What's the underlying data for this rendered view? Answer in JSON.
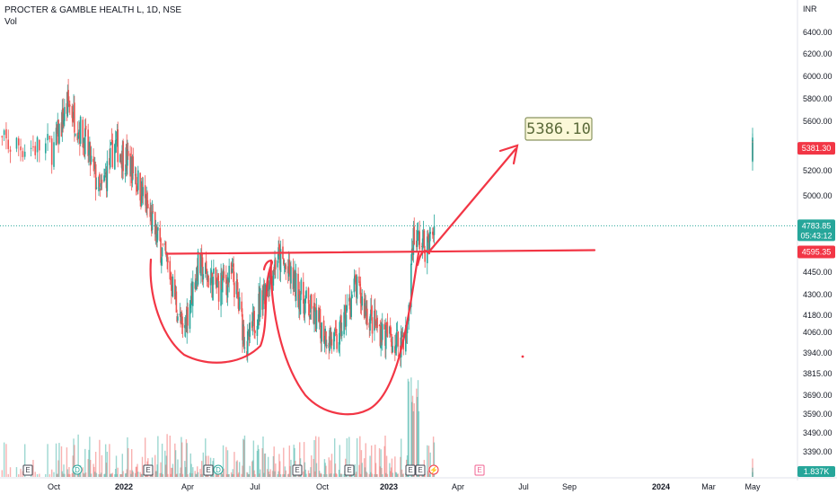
{
  "header": {
    "symbol_line": "PROCTER & GAMBLE HEALTH L, 1D, NSE",
    "vol_label": "Vol"
  },
  "colors": {
    "up": "#26a69a",
    "down": "#ef5350",
    "drawing": "#f23645",
    "price_line": "#26a69a",
    "target_fill": "#fbf8d8",
    "target_border": "#8a9561"
  },
  "chart_data": {
    "type": "candlestick",
    "title": "PROCTER & GAMBLE HEALTH L, 1D, NSE",
    "currency": "INR",
    "ylim": [
      3330,
      6520
    ],
    "y_ticks": [
      6400,
      6200,
      6000,
      5800,
      5600,
      5200,
      5000,
      4450,
      4300,
      4180,
      4060,
      3940,
      3815,
      3690,
      3590,
      3490,
      3390
    ],
    "y_tick_labels": [
      "6400.00",
      "6200.00",
      "6000.00",
      "5800.00",
      "5600.00",
      "5200.00",
      "5000.00",
      "4450.00",
      "4300.00",
      "4180.00",
      "4060.00",
      "3940.00",
      "3815.00",
      "3690.00",
      "3590.00",
      "3490.00",
      "3390.00"
    ],
    "x_labels": [
      "Oct",
      "2022",
      "Apr",
      "Jul",
      "Oct",
      "2023",
      "Apr",
      "Jul",
      "Sep",
      "2024",
      "Mar",
      "May"
    ],
    "price_path": [
      {
        "date": "2021-09-01",
        "close": 5420
      },
      {
        "date": "2021-10-01",
        "close": 5380
      },
      {
        "date": "2021-10-20",
        "close": 5760
      },
      {
        "date": "2021-11-10",
        "close": 5450
      },
      {
        "date": "2021-12-01",
        "close": 5000
      },
      {
        "date": "2021-12-20",
        "close": 5420
      },
      {
        "date": "2022-01-15",
        "close": 5200
      },
      {
        "date": "2022-02-15",
        "close": 4720
      },
      {
        "date": "2022-03-05",
        "close": 4480
      },
      {
        "date": "2022-03-25",
        "close": 4050
      },
      {
        "date": "2022-04-15",
        "close": 4500
      },
      {
        "date": "2022-05-10",
        "close": 4350
      },
      {
        "date": "2022-06-01",
        "close": 4420
      },
      {
        "date": "2022-06-20",
        "close": 3970
      },
      {
        "date": "2022-07-10",
        "close": 4300
      },
      {
        "date": "2022-08-01",
        "close": 4560
      },
      {
        "date": "2022-09-01",
        "close": 4300
      },
      {
        "date": "2022-10-01",
        "close": 4080
      },
      {
        "date": "2022-10-20",
        "close": 3990
      },
      {
        "date": "2022-11-15",
        "close": 4350
      },
      {
        "date": "2022-12-10",
        "close": 4120
      },
      {
        "date": "2023-01-10",
        "close": 4000
      },
      {
        "date": "2023-01-25",
        "close": 4070
      },
      {
        "date": "2023-02-01",
        "close": 4700
      },
      {
        "date": "2023-02-10",
        "close": 4680
      },
      {
        "date": "2023-02-20",
        "close": 4620
      },
      {
        "date": "2023-03-01",
        "close": 4783.85
      }
    ],
    "volume_max_label": "1.837K",
    "last_price": {
      "value": "4783.85",
      "countdown": "05:43:12"
    },
    "levels": [
      {
        "label": "5381.30",
        "value": 5381.3
      },
      {
        "label": "4595.35",
        "value": 4595.35
      }
    ],
    "annotations": {
      "target_label": "5386.10",
      "neckline_value": 4595.35,
      "pattern": "cup and handle"
    },
    "events": [
      "E",
      "D",
      "E",
      "E",
      "D",
      "E",
      "E",
      "E",
      "E",
      "E"
    ]
  }
}
